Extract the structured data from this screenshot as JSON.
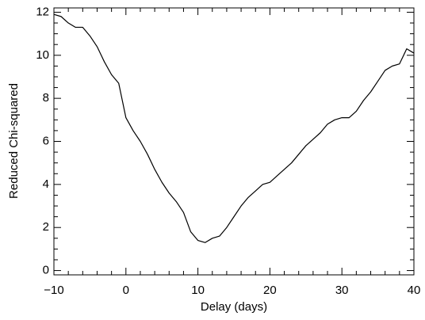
{
  "chart_data": {
    "type": "line",
    "xlabel": "Delay (days)",
    "ylabel": "Reduced Chi-squared",
    "color": "#000000",
    "x": [
      -10,
      -9,
      -8,
      -7,
      -6,
      -5,
      -4,
      -3,
      -2,
      -1,
      0,
      1,
      2,
      3,
      4,
      5,
      6,
      7,
      8,
      9,
      10,
      11,
      12,
      13,
      14,
      15,
      16,
      17,
      18,
      19,
      20,
      21,
      22,
      23,
      24,
      25,
      26,
      27,
      28,
      29,
      30,
      31,
      32,
      33,
      34,
      35,
      36,
      37,
      38,
      39,
      40
    ],
    "values": [
      11.9,
      11.8,
      11.5,
      11.3,
      11.3,
      10.9,
      10.4,
      9.7,
      9.1,
      8.7,
      7.1,
      6.5,
      6.0,
      5.4,
      4.7,
      4.1,
      3.6,
      3.2,
      2.7,
      1.8,
      1.4,
      1.3,
      1.5,
      1.6,
      2.0,
      2.5,
      3.0,
      3.4,
      3.7,
      4.0,
      4.1,
      4.4,
      4.7,
      5.0,
      5.4,
      5.8,
      6.1,
      6.4,
      6.8,
      7.0,
      7.1,
      7.1,
      7.4,
      7.9,
      8.3,
      8.8,
      9.3,
      9.5,
      9.6,
      10.3,
      10.1
    ],
    "xlim": [
      -10,
      40
    ],
    "ylim": [
      -0.2,
      12.2
    ],
    "xticks": [
      {
        "value": -10,
        "label": "−10"
      },
      0,
      10,
      20,
      30,
      40
    ],
    "yticks": [
      0,
      2,
      4,
      6,
      8,
      10,
      12
    ],
    "xminor": [
      -8,
      -6,
      -4,
      -2,
      2,
      4,
      6,
      8,
      12,
      14,
      16,
      18,
      22,
      24,
      26,
      28,
      32,
      34,
      36,
      38
    ],
    "yminor": [
      0.5,
      1,
      1.5,
      2.5,
      3,
      3.5,
      4.5,
      5,
      5.5,
      6.5,
      7,
      7.5,
      8.5,
      9,
      9.5,
      10.5,
      11,
      11.5
    ]
  }
}
